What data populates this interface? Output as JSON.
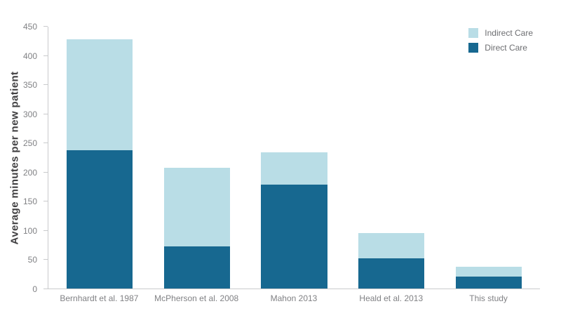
{
  "chart_data": {
    "type": "bar",
    "stacked": true,
    "title": "",
    "ylabel": "Average  minutes per new patient",
    "xlabel": "",
    "ylim": [
      0,
      450
    ],
    "ytick_step": 50,
    "grid": false,
    "legend_position": "top-right",
    "categories": [
      "Bernhardt et al. 1987",
      "McPherson et al. 2008",
      "Mahon 2013",
      "Heald et al. 2013",
      "This study"
    ],
    "series": [
      {
        "name": "Direct Care",
        "color": "#176890",
        "values": [
          238,
          73,
          178,
          52,
          20
        ]
      },
      {
        "name": "Indirect Care",
        "color": "#b9dde6",
        "values": [
          190,
          135,
          56,
          43,
          18
        ]
      }
    ],
    "totals": [
      428,
      208,
      234,
      95,
      38
    ]
  },
  "legend": {
    "items": [
      {
        "label": "Indirect Care",
        "color": "#b9dde6"
      },
      {
        "label": "Direct Care",
        "color": "#176890"
      }
    ]
  }
}
